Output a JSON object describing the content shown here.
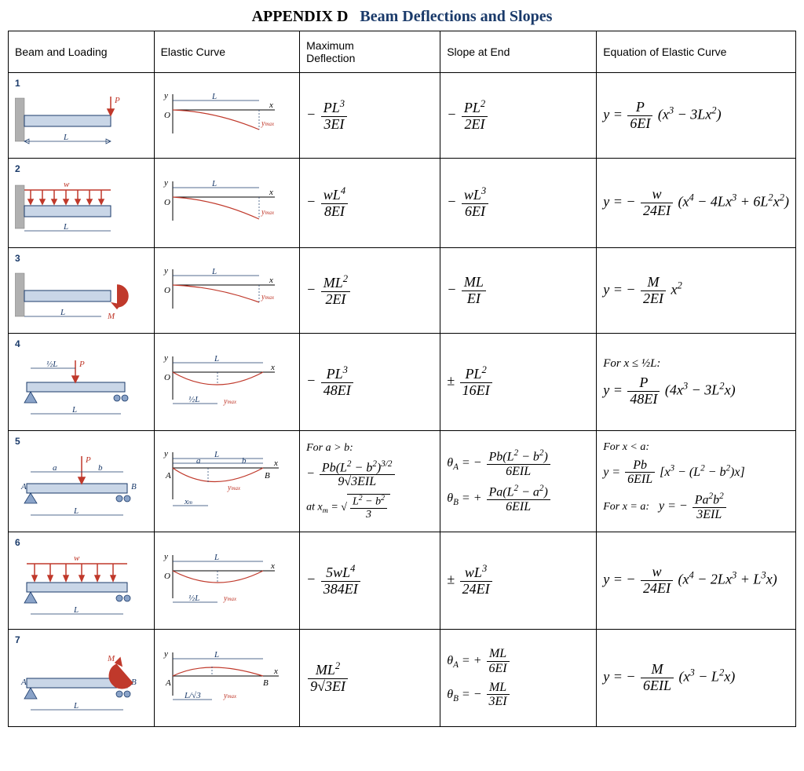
{
  "title_appendix": "APPENDIX D",
  "title_text": "Beam Deflections and Slopes",
  "accent_color": "#1a3a6a",
  "load_color": "#c0392b",
  "columns": {
    "beam": "Beam and Loading",
    "curve": "Elastic Curve",
    "defl": "Maximum\nDeflection",
    "slope": "Slope at End",
    "eq": "Equation of Elastic Curve"
  },
  "cases": {
    "1": {
      "num": "1",
      "defl_html": "− <span class='frac'><span class='num'>PL<sup>3</sup></span><span class='den'>3EI</span></span>",
      "slope_html": "− <span class='frac'><span class='num'>PL<sup>2</sup></span><span class='den'>2EI</span></span>",
      "eq_html": "y = <span class='frac'><span class='num'>P</span><span class='den'>6EI</span></span> (x<sup>3</sup> − 3Lx<sup>2</sup>)"
    },
    "2": {
      "num": "2",
      "defl_html": "− <span class='frac'><span class='num'>wL<sup>4</sup></span><span class='den'>8EI</span></span>",
      "slope_html": "− <span class='frac'><span class='num'>wL<sup>3</sup></span><span class='den'>6EI</span></span>",
      "eq_html": "y = − <span class='frac'><span class='num'>w</span><span class='den'>24EI</span></span> (x<sup>4</sup> − 4Lx<sup>3</sup> + 6L<sup>2</sup>x<sup>2</sup>)"
    },
    "3": {
      "num": "3",
      "defl_html": "− <span class='frac'><span class='num'>ML<sup>2</sup></span><span class='den'>2EI</span></span>",
      "slope_html": "− <span class='frac'><span class='num'>ML</span><span class='den'>EI</span></span>",
      "eq_html": "y = − <span class='frac'><span class='num'>M</span><span class='den'>2EI</span></span> x<sup>2</sup>"
    },
    "4": {
      "num": "4",
      "defl_html": "− <span class='frac'><span class='num'>PL<sup>3</sup></span><span class='den'>48EI</span></span>",
      "slope_html": "± <span class='frac'><span class='num'>PL<sup>2</sup></span><span class='den'>16EI</span></span>",
      "eq_cond": "For x ≤ ½L:",
      "eq_html": "y = <span class='frac'><span class='num'>P</span><span class='den'>48EI</span></span> (4x<sup>3</sup> − 3L<sup>2</sup>x)"
    },
    "5": {
      "num": "5",
      "defl_cond": "For a > b:",
      "defl_html": "− <span class='frac'><span class='num'>Pb(L<sup>2</sup> − b<sup>2</sup>)<sup>3/2</sup></span><span class='den'>9√3EIL</span></span>",
      "defl_at": "at x<sub>m</sub> = <span class='sqrt'>√<span class='rad'><span class='frac'><span class='num'>L<sup>2</sup> − b<sup>2</sup></span><span class='den'>3</span></span></span></span>",
      "slope_a": "θ<sub>A</sub> = − <span class='frac'><span class='num'>Pb(L<sup>2</sup> − b<sup>2</sup>)</span><span class='den'>6EIL</span></span>",
      "slope_b": "θ<sub>B</sub> = + <span class='frac'><span class='num'>Pa(L<sup>2</sup> − a<sup>2</sup>)</span><span class='den'>6EIL</span></span>",
      "eq_cond": "For x < a:",
      "eq_html": "y = <span class='frac'><span class='num'>Pb</span><span class='den'>6EIL</span></span> [x<sup>3</sup> − (L<sup>2</sup> − b<sup>2</sup>)x]",
      "eq_cond2": "For x = a:",
      "eq_html2": "y = − <span class='frac'><span class='num'>Pa<sup>2</sup>b<sup>2</sup></span><span class='den'>3EIL</span></span>"
    },
    "6": {
      "num": "6",
      "defl_html": "− <span class='frac'><span class='num'>5wL<sup>4</sup></span><span class='den'>384EI</span></span>",
      "slope_html": "± <span class='frac'><span class='num'>wL<sup>3</sup></span><span class='den'>24EI</span></span>",
      "eq_html": "y = − <span class='frac'><span class='num'>w</span><span class='den'>24EI</span></span> (x<sup>4</sup> − 2Lx<sup>3</sup> + L<sup>3</sup>x)"
    },
    "7": {
      "num": "7",
      "defl_html": "<span class='frac'><span class='num'>ML<sup>2</sup></span><span class='den'>9√3EI</span></span>",
      "slope_a": "θ<sub>A</sub> = + <span class='frac'><span class='num'>ML</span><span class='den'>6EI</span></span>",
      "slope_b": "θ<sub>B</sub> = − <span class='frac'><span class='num'>ML</span><span class='den'>3EI</span></span>",
      "eq_html": "y = − <span class='frac'><span class='num'>M</span><span class='den'>6EIL</span></span> (x<sup>3</sup> − L<sup>2</sup>x)"
    }
  },
  "labels": {
    "P": "P",
    "w": "w",
    "M": "M",
    "L": "L",
    "y": "y",
    "x": "x",
    "O": "O",
    "A": "A",
    "B": "B",
    "a": "a",
    "b": "b",
    "ymax": "y_max",
    "halfL": "½L",
    "xm": "x_m",
    "Lover3": "L/√3"
  }
}
